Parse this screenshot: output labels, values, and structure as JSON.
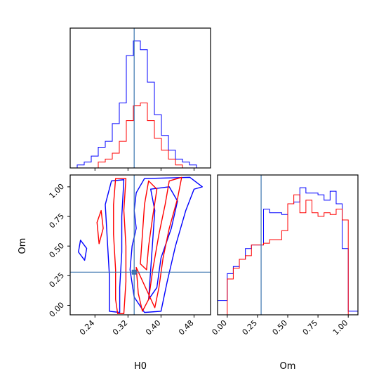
{
  "chart_data": {
    "type": "corner",
    "parameters": [
      "H0",
      "Om"
    ],
    "truth": {
      "H0": 0.335,
      "Om": 0.28
    },
    "colors": {
      "blue": "#0000ff",
      "red": "#ff0000",
      "truth": "#3b75af"
    },
    "panels": {
      "h0_hist": {
        "xlim": [
          0.18,
          0.52
        ],
        "xticks": [
          0.24,
          0.32,
          0.4,
          0.48
        ],
        "series": [
          {
            "color": "#0000ff",
            "bin_edges": [
              0.18,
              0.197,
              0.214,
              0.231,
              0.248,
              0.265,
              0.282,
              0.299,
              0.316,
              0.333,
              0.35,
              0.367,
              0.384,
              0.401,
              0.418,
              0.435,
              0.452,
              0.469,
              0.486,
              0.503,
              0.52
            ],
            "counts": [
              0,
              1,
              2,
              4,
              7,
              9,
              15,
              22,
              38,
              43,
              40,
              29,
              18,
              11,
              6,
              3,
              2,
              1,
              0,
              0
            ]
          },
          {
            "color": "#ff0000",
            "bin_edges": [
              0.18,
              0.197,
              0.214,
              0.231,
              0.248,
              0.265,
              0.282,
              0.299,
              0.316,
              0.333,
              0.35,
              0.367,
              0.384,
              0.401,
              0.418,
              0.435,
              0.452,
              0.469,
              0.486,
              0.503,
              0.52
            ],
            "counts": [
              0,
              0,
              0,
              0,
              2,
              3,
              5,
              9,
              16,
              21,
              22,
              16,
              10,
              6,
              3,
              1,
              0,
              0,
              0,
              0
            ]
          }
        ]
      },
      "om_hist": {
        "xlim": [
          -0.08,
          1.08
        ],
        "xticks": [
          0.0,
          0.25,
          0.5,
          0.75,
          1.0
        ],
        "xticklabels": [
          "0.00",
          "0.25",
          "0.50",
          "0.75",
          "1.00"
        ],
        "xlabel": "Om",
        "series": [
          {
            "color": "#0000ff",
            "bin_edges": [
              -0.08,
              0.0,
              0.05,
              0.1,
              0.15,
              0.2,
              0.25,
              0.3,
              0.35,
              0.4,
              0.45,
              0.5,
              0.55,
              0.6,
              0.65,
              0.7,
              0.75,
              0.8,
              0.85,
              0.9,
              0.95,
              1.0,
              1.08
            ],
            "counts": [
              8,
              23,
              27,
              31,
              37,
              39,
              39,
              59,
              57,
              57,
              56,
              62,
              63,
              71,
              68,
              68,
              67,
              64,
              69,
              62,
              37,
              2
            ]
          },
          {
            "color": "#ff0000",
            "bin_edges": [
              0.0,
              0.05,
              0.1,
              0.15,
              0.2,
              0.25,
              0.3,
              0.35,
              0.4,
              0.45,
              0.5,
              0.55,
              0.6,
              0.65,
              0.7,
              0.75,
              0.8,
              0.85,
              0.9,
              0.95,
              1.0
            ],
            "counts": [
              20,
              26,
              31,
              33,
              39,
              39,
              40,
              42,
              42,
              47,
              62,
              67,
              57,
              64,
              57,
              55,
              57,
              56,
              59,
              53
            ]
          }
        ]
      },
      "joint": {
        "xlim": [
          0.18,
          0.52
        ],
        "ylim": [
          -0.08,
          1.1
        ],
        "xticks": [
          0.24,
          0.32,
          0.4,
          0.48
        ],
        "yticks": [
          0.0,
          0.25,
          0.5,
          0.75,
          1.0
        ],
        "yticklabels": [
          "0.00",
          "0.25",
          "0.50",
          "0.75",
          "1.00"
        ],
        "xlabel": "H0",
        "ylabel": "Om",
        "contours": [
          {
            "color": "#0000ff",
            "points": [
              [
                0.28,
                1.05
              ],
              [
                0.265,
                0.85
              ],
              [
                0.27,
                0.55
              ],
              [
                0.275,
                0.25
              ],
              [
                0.275,
                -0.05
              ],
              [
                0.3,
                -0.06
              ],
              [
                0.3,
                0.15
              ],
              [
                0.305,
                0.45
              ],
              [
                0.305,
                0.75
              ],
              [
                0.31,
                1.06
              ]
            ]
          },
          {
            "color": "#0000ff",
            "points": [
              [
                0.33,
                0.5
              ],
              [
                0.325,
                0.3
              ],
              [
                0.335,
                0.07
              ],
              [
                0.36,
                -0.06
              ],
              [
                0.4,
                -0.05
              ],
              [
                0.415,
                0.2
              ],
              [
                0.435,
                0.5
              ],
              [
                0.46,
                0.8
              ],
              [
                0.48,
                0.98
              ],
              [
                0.5,
                1.0
              ],
              [
                0.47,
                1.08
              ],
              [
                0.36,
                1.07
              ],
              [
                0.34,
                0.95
              ],
              [
                0.335,
                0.8
              ],
              [
                0.34,
                0.65
              ]
            ]
          },
          {
            "color": "#0000ff",
            "points": [
              [
                0.37,
                0.05
              ],
              [
                0.375,
                0.3
              ],
              [
                0.38,
                0.55
              ],
              [
                0.385,
                0.8
              ],
              [
                0.375,
                0.98
              ],
              [
                0.42,
                1.0
              ],
              [
                0.44,
                0.88
              ],
              [
                0.425,
                0.65
              ],
              [
                0.4,
                0.4
              ],
              [
                0.39,
                0.15
              ]
            ]
          },
          {
            "color": "#0000ff",
            "points": [
              [
                0.205,
                0.55
              ],
              [
                0.22,
                0.48
              ],
              [
                0.215,
                0.38
              ],
              [
                0.2,
                0.45
              ]
            ]
          },
          {
            "color": "#ff0000",
            "points": [
              [
                0.29,
                1.07
              ],
              [
                0.285,
                0.85
              ],
              [
                0.285,
                0.6
              ],
              [
                0.29,
                0.3
              ],
              [
                0.29,
                0.05
              ],
              [
                0.295,
                -0.07
              ],
              [
                0.31,
                -0.07
              ],
              [
                0.315,
                0.2
              ],
              [
                0.315,
                0.5
              ],
              [
                0.31,
                0.8
              ],
              [
                0.315,
                1.07
              ]
            ]
          },
          {
            "color": "#ff0000",
            "points": [
              [
                0.34,
                0.32
              ],
              [
                0.345,
                0.1
              ],
              [
                0.355,
                -0.05
              ],
              [
                0.37,
                0.05
              ],
              [
                0.38,
                0.3
              ],
              [
                0.395,
                0.6
              ],
              [
                0.41,
                0.85
              ],
              [
                0.42,
                1.05
              ],
              [
                0.45,
                1.08
              ],
              [
                0.44,
                0.9
              ],
              [
                0.42,
                0.65
              ],
              [
                0.405,
                0.4
              ],
              [
                0.395,
                0.15
              ],
              [
                0.385,
                -0.02
              ]
            ]
          },
          {
            "color": "#ff0000",
            "points": [
              [
                0.35,
                0.35
              ],
              [
                0.355,
                0.6
              ],
              [
                0.36,
                0.85
              ],
              [
                0.37,
                1.05
              ],
              [
                0.39,
                0.98
              ],
              [
                0.38,
                0.75
              ],
              [
                0.37,
                0.5
              ],
              [
                0.365,
                0.3
              ]
            ]
          },
          {
            "color": "#ff0000",
            "points": [
              [
                0.255,
                0.8
              ],
              [
                0.26,
                0.65
              ],
              [
                0.25,
                0.52
              ],
              [
                0.245,
                0.7
              ]
            ]
          }
        ]
      }
    }
  }
}
